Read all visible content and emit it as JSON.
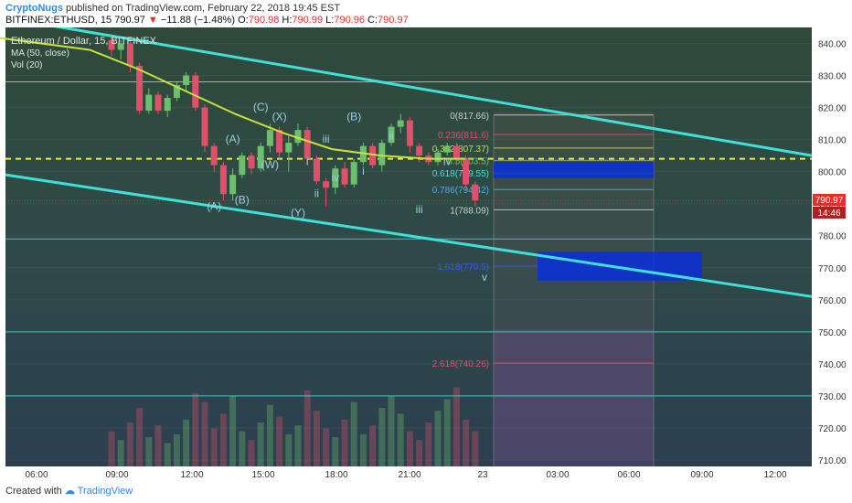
{
  "header": {
    "user": "CryptoNugs",
    "published": " published on TradingView.com, February 22, 2018 19:45 EST",
    "symbol": "BITFINEX:ETHUSD, 15",
    "last": "790.97",
    "arrow": "▼",
    "change": "−11.88 (−1.48%)",
    "o_label": "O:",
    "o": "790.98",
    "h_label": "H:",
    "h": "790.99",
    "l_label": "L:",
    "l": "790.96",
    "c_label": "C:",
    "c": "790.97"
  },
  "legend": {
    "title": "Ethereum / Dollar, 15, BITFINEX",
    "ma": "MA (50, close)",
    "vol": "Vol (20)"
  },
  "footer": {
    "created": "Created with",
    "brand": "TradingView"
  },
  "badges": {
    "price": "790.97",
    "timer": "14:46"
  },
  "colors": {
    "background": "#2f3e46",
    "candle_up": "#6cbf6c",
    "candle_down": "#e0506a",
    "ma": "#c8e23a",
    "channel": "#3fe0d8",
    "dashed_level": "#e8f040",
    "target_box": "#0a2fd8",
    "price_badge": "#e0302a"
  },
  "chart_data": {
    "type": "candlestick",
    "symbol": "ETHUSD",
    "ylim": [
      708,
      845
    ],
    "y_ticks": [
      "840.00",
      "830.00",
      "820.00",
      "810.00",
      "800.00",
      "790.00",
      "780.00",
      "770.00",
      "760.00",
      "750.00",
      "740.00",
      "730.00",
      "720.00",
      "710.00"
    ],
    "x_ticks": [
      "06:00",
      "09:00",
      "12:00",
      "15:00",
      "18:00",
      "21:00",
      "23",
      "03:00",
      "06:00",
      "09:00",
      "12:00"
    ],
    "candles": [
      {
        "o": 841,
        "h": 842,
        "l": 836,
        "c": 838
      },
      {
        "o": 838,
        "h": 841,
        "l": 835,
        "c": 840
      },
      {
        "o": 840,
        "h": 841,
        "l": 831,
        "c": 833
      },
      {
        "o": 833,
        "h": 834,
        "l": 818,
        "c": 819
      },
      {
        "o": 819,
        "h": 826,
        "l": 818,
        "c": 824
      },
      {
        "o": 824,
        "h": 825,
        "l": 818,
        "c": 819
      },
      {
        "o": 819,
        "h": 824,
        "l": 817,
        "c": 823
      },
      {
        "o": 823,
        "h": 828,
        "l": 822,
        "c": 827
      },
      {
        "o": 827,
        "h": 831,
        "l": 825,
        "c": 830
      },
      {
        "o": 830,
        "h": 831,
        "l": 819,
        "c": 820
      },
      {
        "o": 820,
        "h": 821,
        "l": 806,
        "c": 808
      },
      {
        "o": 808,
        "h": 809,
        "l": 800,
        "c": 802
      },
      {
        "o": 802,
        "h": 803,
        "l": 791,
        "c": 793
      },
      {
        "o": 793,
        "h": 801,
        "l": 791,
        "c": 799
      },
      {
        "o": 799,
        "h": 806,
        "l": 798,
        "c": 805
      },
      {
        "o": 805,
        "h": 806,
        "l": 799,
        "c": 801
      },
      {
        "o": 801,
        "h": 809,
        "l": 800,
        "c": 808
      },
      {
        "o": 808,
        "h": 815,
        "l": 806,
        "c": 813
      },
      {
        "o": 813,
        "h": 814,
        "l": 804,
        "c": 806
      },
      {
        "o": 806,
        "h": 811,
        "l": 800,
        "c": 809
      },
      {
        "o": 809,
        "h": 815,
        "l": 808,
        "c": 813
      },
      {
        "o": 813,
        "h": 814,
        "l": 802,
        "c": 804
      },
      {
        "o": 804,
        "h": 805,
        "l": 796,
        "c": 797
      },
      {
        "o": 797,
        "h": 798,
        "l": 789,
        "c": 795
      },
      {
        "o": 795,
        "h": 802,
        "l": 793,
        "c": 801
      },
      {
        "o": 801,
        "h": 803,
        "l": 795,
        "c": 796
      },
      {
        "o": 796,
        "h": 804,
        "l": 795,
        "c": 803
      },
      {
        "o": 803,
        "h": 809,
        "l": 802,
        "c": 808
      },
      {
        "o": 808,
        "h": 809,
        "l": 801,
        "c": 802
      },
      {
        "o": 802,
        "h": 810,
        "l": 800,
        "c": 809
      },
      {
        "o": 809,
        "h": 815,
        "l": 808,
        "c": 814
      },
      {
        "o": 814,
        "h": 818,
        "l": 812,
        "c": 816
      },
      {
        "o": 816,
        "h": 817,
        "l": 806,
        "c": 808
      },
      {
        "o": 808,
        "h": 809,
        "l": 803,
        "c": 805
      },
      {
        "o": 805,
        "h": 806,
        "l": 802,
        "c": 803
      },
      {
        "o": 803,
        "h": 807,
        "l": 802,
        "c": 806
      },
      {
        "o": 806,
        "h": 809,
        "l": 805,
        "c": 808
      },
      {
        "o": 808,
        "h": 809,
        "l": 802,
        "c": 804
      },
      {
        "o": 804,
        "h": 805,
        "l": 794,
        "c": 796
      },
      {
        "o": 796,
        "h": 797,
        "l": 789,
        "c": 791
      }
    ],
    "ma_points": [
      [
        0,
        842
      ],
      [
        8,
        838
      ],
      [
        12,
        832
      ],
      [
        16,
        825
      ],
      [
        20,
        818
      ],
      [
        24,
        812
      ],
      [
        28,
        807
      ],
      [
        32,
        805
      ],
      [
        36,
        804
      ],
      [
        39,
        804
      ]
    ],
    "channel_upper": {
      "from": [
        0,
        848
      ],
      "to": [
        67,
        805
      ]
    },
    "channel_lower": {
      "from": [
        0,
        799
      ],
      "to": [
        67,
        761
      ]
    },
    "horizontal_levels": [
      828,
      779,
      750,
      730
    ],
    "dashed_level": 804,
    "fib_levels": [
      {
        "label": "0(817.66)",
        "value": 817.66
      },
      {
        "label": "0.236(811.6)",
        "value": 811.6
      },
      {
        "label": "0.382(807.37)",
        "value": 807.37
      },
      {
        "label": "0.5(803.5)",
        "value": 803.5
      },
      {
        "label": "0.618(799.55)",
        "value": 799.55
      },
      {
        "label": "0.786(794.42)",
        "value": 794.42
      },
      {
        "label": "1(788.09)",
        "value": 788.09
      },
      {
        "label": "1.618(770.5)",
        "value": 770.5
      },
      {
        "label": "2.618(740.26)",
        "value": 740.26
      }
    ],
    "target_boxes": [
      {
        "low": 798,
        "high": 803
      },
      {
        "low": 766,
        "high": 775
      }
    ],
    "wave_labels": [
      {
        "text": "(A)",
        "x": 11,
        "y": 788
      },
      {
        "text": "(B)",
        "x": 14,
        "y": 790
      },
      {
        "text": "(A)",
        "x": 13,
        "y": 809
      },
      {
        "text": "(C)",
        "x": 16,
        "y": 819
      },
      {
        "text": "(W)",
        "x": 17,
        "y": 801
      },
      {
        "text": "(X)",
        "x": 18,
        "y": 816
      },
      {
        "text": "(Y)",
        "x": 20,
        "y": 786
      },
      {
        "text": "i",
        "x": 21,
        "y": 802
      },
      {
        "text": "ii",
        "x": 22,
        "y": 792
      },
      {
        "text": "iii",
        "x": 23,
        "y": 809
      },
      {
        "text": "iv",
        "x": 24,
        "y": 797
      },
      {
        "text": "(B)",
        "x": 26,
        "y": 816
      },
      {
        "text": "i",
        "x": 27,
        "y": 799
      },
      {
        "text": "ii",
        "x": 30,
        "y": 810
      },
      {
        "text": "iii",
        "x": 33,
        "y": 787
      },
      {
        "text": "iv",
        "x": 36,
        "y": 802
      },
      {
        "text": "v",
        "x": 40,
        "y": 766
      }
    ],
    "volumes": [
      12,
      9,
      15,
      20,
      10,
      14,
      8,
      11,
      16,
      25,
      22,
      13,
      18,
      24,
      12,
      9,
      15,
      21,
      17,
      11,
      14,
      26,
      19,
      13,
      10,
      16,
      22,
      11,
      14,
      20,
      24,
      18,
      12,
      9,
      15,
      19,
      23,
      27,
      16,
      12
    ]
  }
}
